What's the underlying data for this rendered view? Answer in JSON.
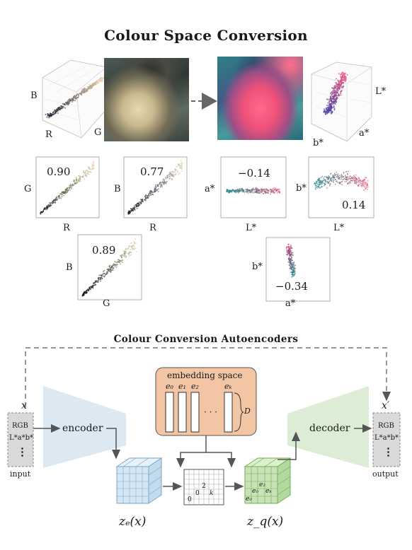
{
  "title": "Colour Space Conversion",
  "subtitle": "Colour Conversion Autoencoders",
  "cubes": {
    "rgb": {
      "axis1": "B",
      "axis2": "R",
      "axis3": "G"
    },
    "lab": {
      "axis1": "L*",
      "axis2": "b*",
      "axis3": "a*"
    }
  },
  "scatter_plots": [
    {
      "x": "R",
      "y": "G",
      "corr": "0.90"
    },
    {
      "x": "R",
      "y": "B",
      "corr": "0.77"
    },
    {
      "x": "G",
      "y": "B",
      "corr": "0.89"
    },
    {
      "x": "L*",
      "y": "a*",
      "corr": "−0.14"
    },
    {
      "x": "L*",
      "y": "b*",
      "corr": "0.14"
    },
    {
      "x": "a*",
      "y": "b*",
      "corr": "−0.34"
    }
  ],
  "autoencoder": {
    "input_var": "x",
    "output_var": "x′",
    "input_items": [
      "RGB",
      "L*a*b*",
      "⋮"
    ],
    "input_caption": "input",
    "output_items": [
      "RGB",
      "L*a*b*",
      "⋮"
    ],
    "output_caption": "output",
    "encoder": "encoder",
    "decoder": "decoder",
    "embedding_title": "embedding space",
    "embedding_vectors": [
      "e₀",
      "e₁",
      "e₂",
      "eₖ"
    ],
    "embedding_ellipsis": "· · ·",
    "embedding_dim": "D",
    "grid_labels": [
      "0",
      "0",
      "2",
      "k"
    ],
    "zq_labels": [
      "e₀",
      "e₀",
      "e₂",
      "eₖ"
    ],
    "ze": "zₑ(x)",
    "zq": "z_q(x)"
  },
  "colors": {
    "encoder_fill": "#dce9f3",
    "decoder_fill": "#ddedd5",
    "embedding_fill": "#f2c5a4",
    "ze_fill": "#d5e6f3",
    "zq_fill": "#c8e3b8",
    "box_fill": "#d9d9d9",
    "arrow": "#555555"
  }
}
